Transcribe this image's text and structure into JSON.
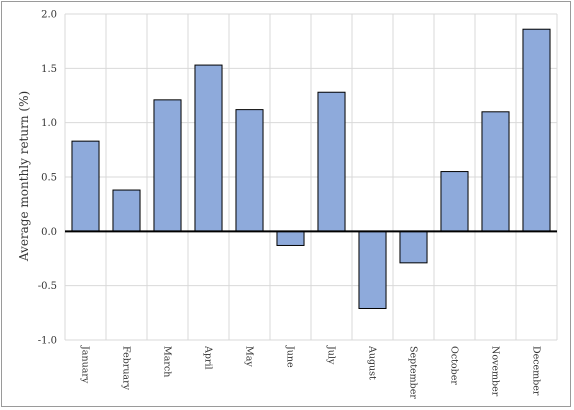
{
  "chart_data": {
    "type": "bar",
    "title": "",
    "xlabel": "",
    "ylabel": "Average monthly return (%)",
    "categories": [
      "January",
      "February",
      "March",
      "April",
      "May",
      "June",
      "July",
      "August",
      "September",
      "October",
      "November",
      "December"
    ],
    "values": [
      0.83,
      0.38,
      1.21,
      1.53,
      1.12,
      -0.13,
      1.28,
      -0.71,
      -0.29,
      0.55,
      1.1,
      1.86
    ],
    "ylim": [
      -1.0,
      2.0
    ],
    "yticks": [
      2.0,
      1.5,
      1.0,
      0.5,
      0.0,
      -0.5,
      -1.0
    ],
    "ytick_labels": [
      "2.0",
      "1.5",
      "1.0",
      "0.5",
      "0.0",
      "-0.5",
      "-1.0"
    ],
    "grid": true,
    "bar_color": "#8eaadb",
    "bar_edge_color": "#000000"
  }
}
